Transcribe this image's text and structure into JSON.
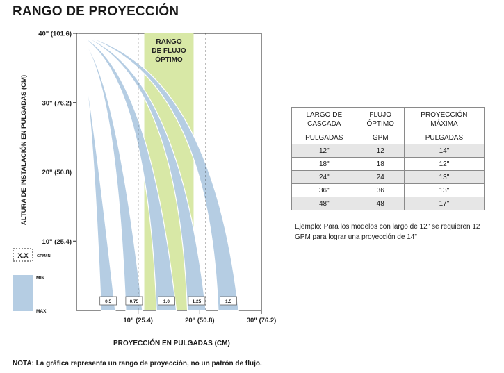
{
  "title": "RANGO DE PROYECCIÓN",
  "chart_data": {
    "type": "area",
    "ylabel": "ALTURA DE INSTALACIÓN EN PULGADAS (CM)",
    "xlabel": "PROYECCIÓN EN PULGADAS (CM)",
    "yticks": [
      {
        "value": 40,
        "label": "40\" (101.6)"
      },
      {
        "value": 30,
        "label": "30\" (76.2)"
      },
      {
        "value": 20,
        "label": "20\" (50.8)"
      },
      {
        "value": 10,
        "label": "10\" (25.4)"
      }
    ],
    "xticks": [
      {
        "value": 10,
        "label": "10\" (25.4)"
      },
      {
        "value": 20,
        "label": "20\" (50.8)"
      },
      {
        "value": 30,
        "label": "30\" (76.2)"
      }
    ],
    "xlim": [
      0,
      30
    ],
    "ylim": [
      0,
      40
    ],
    "optimal_range": {
      "label": "RANGO DE FLUJO ÓPTIMO",
      "inner_x": [
        11,
        19
      ],
      "outer_x": [
        10,
        21
      ]
    },
    "series": [
      {
        "name": "0.5",
        "min_x": 4.0,
        "max_x": 6.3
      },
      {
        "name": "0.75",
        "min_x": 8.0,
        "max_x": 10.7
      },
      {
        "name": "1.0",
        "min_x": 13.0,
        "max_x": 16.2
      },
      {
        "name": "1.25",
        "min_x": 18.0,
        "max_x": 21.0
      },
      {
        "name": "1.5",
        "min_x": 23.0,
        "max_x": 26.3
      }
    ],
    "legend": {
      "dashed_label": "X.X",
      "dashed_unit": "GPM/IN",
      "min_label": "MIN",
      "max_label": "MAX"
    },
    "colors": {
      "stream": "#b5cde3",
      "optimal": "#d8e8a6"
    }
  },
  "table": {
    "headers": [
      [
        "LARGO DE",
        "CASCADA"
      ],
      [
        "FLUJO",
        "ÓPTIMO"
      ],
      [
        "PROYECCIÓN",
        "MÁXIMA"
      ]
    ],
    "units": [
      "PULGADAS",
      "GPM",
      "PULGADAS"
    ],
    "rows": [
      [
        "12\"",
        "12",
        "14\""
      ],
      [
        "18\"",
        "18",
        "12\""
      ],
      [
        "24\"",
        "24",
        "13\""
      ],
      [
        "36\"",
        "36",
        "13\""
      ],
      [
        "48\"",
        "48",
        "17\""
      ]
    ]
  },
  "example_text": "Ejemplo: Para los modelos con largo de 12\" se requieren 12 GPM para lograr una proyección de 14\"",
  "note": "NOTA: La gráfica representa un rango de proyección, no un patrón de flujo."
}
